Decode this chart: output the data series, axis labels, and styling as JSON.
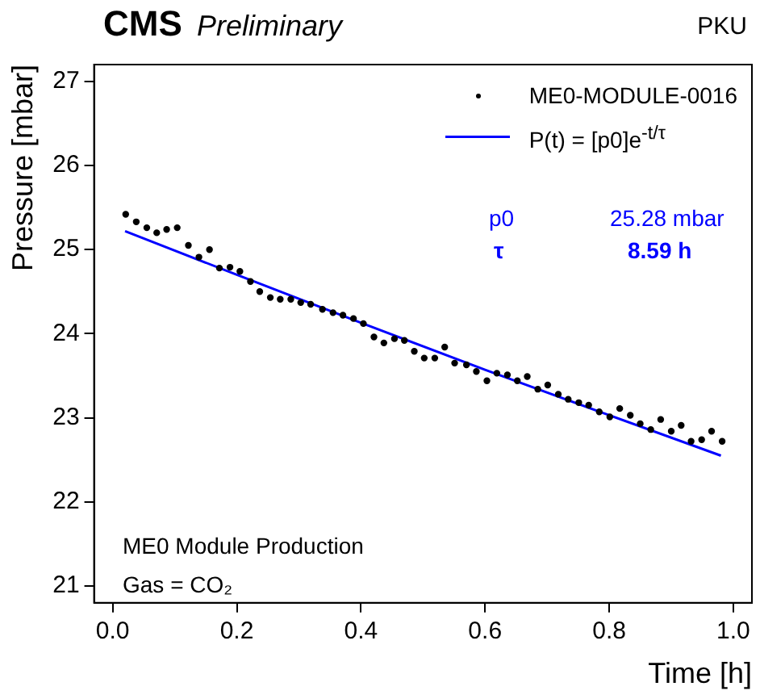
{
  "chart_data": {
    "type": "scatter",
    "title": "CMS",
    "subtitle": "Preliminary",
    "xlabel": "Time [h]",
    "ylabel": "Pressure [mbar]",
    "annotations": [
      "PKU",
      "p0",
      "25.28 mbar",
      "τ",
      "8.59 h",
      "ME0 Module Production",
      "Gas = CO₂"
    ],
    "xlim": [
      -0.03,
      1.03
    ],
    "ylim": [
      20.8,
      27.2
    ],
    "xticks": [
      {
        "value": 0,
        "label": "0.0"
      },
      {
        "value": 0.2,
        "label": "0.2"
      },
      {
        "value": 0.4,
        "label": "0.4"
      },
      {
        "value": 0.6,
        "label": "0.6"
      },
      {
        "value": 0.8,
        "label": "0.8"
      },
      {
        "value": 1,
        "label": "1.0"
      }
    ],
    "yticks": [
      21,
      22,
      23,
      24,
      25,
      26,
      27
    ],
    "grid": false,
    "legend": "top right",
    "marker": "circle",
    "line_style": "solid",
    "series": [
      {
        "name": "ME0-MODULE-0016",
        "color": "#000000",
        "x": [
          0.021,
          0.038,
          0.055,
          0.071,
          0.087,
          0.104,
          0.122,
          0.139,
          0.156,
          0.172,
          0.189,
          0.205,
          0.222,
          0.237,
          0.254,
          0.27,
          0.287,
          0.303,
          0.319,
          0.338,
          0.355,
          0.371,
          0.388,
          0.404,
          0.421,
          0.437,
          0.454,
          0.47,
          0.486,
          0.502,
          0.519,
          0.535,
          0.551,
          0.57,
          0.586,
          0.603,
          0.619,
          0.636,
          0.652,
          0.668,
          0.685,
          0.701,
          0.718,
          0.734,
          0.751,
          0.767,
          0.784,
          0.801,
          0.817,
          0.834,
          0.85,
          0.867,
          0.883,
          0.9,
          0.916,
          0.932,
          0.949,
          0.965,
          0.982
        ],
        "values": [
          25.42,
          25.33,
          25.26,
          25.2,
          25.24,
          25.26,
          25.05,
          24.91,
          25.0,
          24.78,
          24.79,
          24.74,
          24.62,
          24.5,
          24.43,
          24.41,
          24.41,
          24.37,
          24.35,
          24.29,
          24.25,
          24.22,
          24.18,
          24.12,
          23.96,
          23.89,
          23.94,
          23.92,
          23.79,
          23.71,
          23.71,
          23.84,
          23.65,
          23.63,
          23.55,
          23.44,
          23.53,
          23.51,
          23.44,
          23.49,
          23.34,
          23.39,
          23.28,
          23.22,
          23.18,
          23.15,
          23.07,
          23.01,
          23.11,
          23.03,
          22.93,
          22.86,
          22.98,
          22.84,
          22.91,
          22.72,
          22.74,
          22.84,
          22.72
        ]
      },
      {
        "name": "P(t) = [p0]e$^{-t/τ}$",
        "type": "line",
        "marker": "none",
        "color": "#0000ff",
        "x": [
          0.02,
          0.2,
          0.4,
          0.6,
          0.8,
          0.98
        ],
        "values": [
          25.22,
          24.7,
          24.13,
          23.57,
          23.03,
          22.55
        ]
      }
    ]
  }
}
